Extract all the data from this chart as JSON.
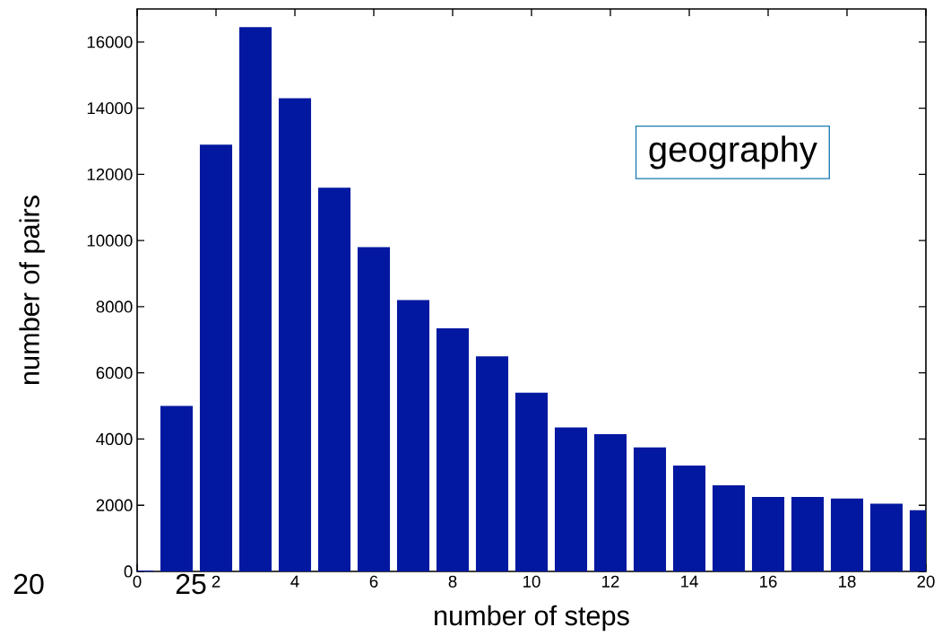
{
  "chart_data": {
    "type": "bar",
    "xlabel": "number of steps",
    "ylabel": "number of pairs",
    "annotations": [
      "geography",
      "20",
      "25"
    ],
    "x": [
      0,
      1,
      2,
      3,
      4,
      5,
      6,
      7,
      8,
      9,
      10,
      11,
      12,
      13,
      14,
      15,
      16,
      17,
      18,
      19,
      20
    ],
    "values": [
      30,
      5000,
      12900,
      16450,
      14300,
      11600,
      9800,
      8200,
      7350,
      6500,
      5400,
      4350,
      4150,
      3750,
      3200,
      2600,
      2250,
      2250,
      2200,
      2050,
      1850
    ],
    "color": "#0318a0",
    "xlim": [
      0,
      20
    ],
    "ylim": [
      0,
      17000
    ],
    "xticks": [
      0,
      2,
      4,
      6,
      8,
      10,
      12,
      14,
      16,
      18,
      20
    ],
    "yticks": [
      0,
      2000,
      4000,
      6000,
      8000,
      10000,
      12000,
      14000,
      16000
    ],
    "grid": false
  }
}
